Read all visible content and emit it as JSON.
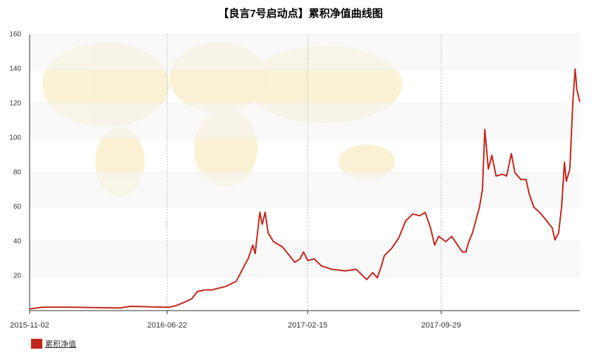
{
  "chart_data": {
    "type": "line",
    "title": "【良言7号启动点】累积净值曲线图",
    "x": [
      "2015-11-02",
      "2015-11-24",
      "2016-01-10",
      "2016-04-03",
      "2016-04-21",
      "2016-06-14",
      "2016-06-26",
      "2016-07-08",
      "2016-07-22",
      "2016-08-03",
      "2016-08-12",
      "2016-08-24",
      "2016-09-05",
      "2016-09-29",
      "2016-10-17",
      "2016-10-29",
      "2016-11-06",
      "2016-11-14",
      "2016-11-18",
      "2016-11-26",
      "2016-11-30",
      "2016-12-05",
      "2016-12-10",
      "2016-12-19",
      "2017-01-03",
      "2017-01-15",
      "2017-01-24",
      "2017-02-02",
      "2017-02-08",
      "2017-02-15",
      "2017-02-26",
      "2017-03-10",
      "2017-03-27",
      "2017-04-20",
      "2017-05-08",
      "2017-05-20",
      "2017-05-26",
      "2017-06-05",
      "2017-06-13",
      "2017-06-19",
      "2017-06-25",
      "2017-07-07",
      "2017-07-19",
      "2017-07-31",
      "2017-08-12",
      "2017-08-24",
      "2017-09-02",
      "2017-09-11",
      "2017-09-18",
      "2017-09-25",
      "2017-10-07",
      "2017-10-17",
      "2017-10-29",
      "2017-11-04",
      "2017-11-10",
      "2017-11-15",
      "2017-11-21",
      "2017-12-03",
      "2017-12-08",
      "2017-12-12",
      "2017-12-18",
      "2017-12-24",
      "2017-12-31",
      "2018-01-11",
      "2018-01-18",
      "2018-01-26",
      "2018-02-01",
      "2018-02-11",
      "2018-02-20",
      "2018-02-25",
      "2018-03-05",
      "2018-03-15",
      "2018-03-27",
      "2018-04-05",
      "2018-04-10",
      "2018-04-16",
      "2018-04-21",
      "2018-04-26",
      "2018-04-29",
      "2018-05-05",
      "2018-05-10",
      "2018-05-14",
      "2018-05-17",
      "2018-05-22"
    ],
    "series": [
      {
        "name": "累积净值",
        "color": "#c0281e",
        "values": [
          1,
          2,
          2,
          1.5,
          2.5,
          2,
          2,
          3,
          5,
          7,
          11,
          12,
          12,
          14,
          17,
          25,
          30,
          38,
          33,
          57,
          50,
          57,
          45,
          40,
          37,
          32,
          28,
          30,
          34,
          29,
          30,
          26,
          24,
          23,
          24,
          20,
          18,
          22,
          19,
          25,
          32,
          36,
          42,
          52,
          56,
          55,
          57,
          48,
          38,
          43,
          40,
          43,
          37,
          34,
          34,
          40,
          45,
          60,
          70,
          105,
          82,
          90,
          78,
          79,
          78,
          91,
          80,
          76,
          76,
          68,
          60,
          57,
          52,
          48,
          41,
          45,
          60,
          86,
          75,
          82,
          120,
          140,
          128,
          121
        ]
      }
    ],
    "xlim": [
      "2015-11-02",
      "2018-05-22"
    ],
    "xticks": [
      "2015-11-02",
      "2016-06-22",
      "2017-02-15",
      "2017-09-29"
    ],
    "ylim": [
      0,
      160
    ],
    "yticks": [
      20,
      40,
      60,
      80,
      100,
      120,
      140,
      160
    ],
    "grid": true,
    "legend": "bottom-left"
  }
}
